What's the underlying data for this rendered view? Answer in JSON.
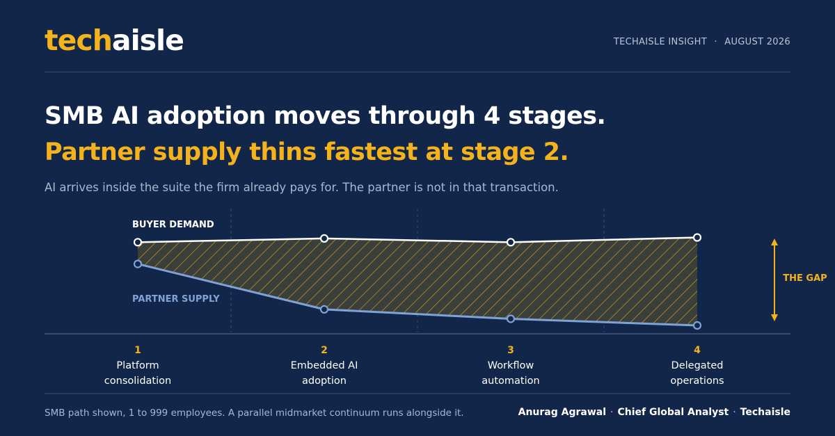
{
  "brand": {
    "logo_part1": "tech",
    "logo_part2": "aisle"
  },
  "header": {
    "series": "TECHAISLE INSIGHT",
    "separator": "·",
    "date": "AUGUST 2026"
  },
  "headline": {
    "line1": "SMB AI adoption moves through 4 stages.",
    "line2": "Partner supply thins fastest at stage 2.",
    "subtitle": "AI arrives inside the suite the firm already pays for. The partner is not in that transaction."
  },
  "chart_data": {
    "type": "line",
    "categories": [
      "1",
      "2",
      "3",
      "4"
    ],
    "category_names": [
      "Platform consolidation",
      "Embedded AI adoption",
      "Workflow automation",
      "Delegated operations"
    ],
    "category_lines": [
      [
        "Platform",
        "consolidation"
      ],
      [
        "Embedded AI",
        "adoption"
      ],
      [
        "Workflow",
        "automation"
      ],
      [
        "Delegated",
        "operations"
      ]
    ],
    "series": [
      {
        "name": "BUYER DEMAND",
        "values": [
          0.88,
          0.92,
          0.88,
          0.93
        ],
        "color": "#ffffff"
      },
      {
        "name": "PARTNER SUPPLY",
        "values": [
          0.65,
          0.17,
          0.07,
          0.0
        ],
        "color": "#7fa3d6"
      }
    ],
    "gap_label": "THE GAP",
    "gap_fill": "hatched",
    "accent_color": "#f4b31c",
    "ylim": [
      0,
      1
    ],
    "grid": "dashed vertical separators between stages"
  },
  "footer": {
    "note": "SMB path shown, 1 to 999 employees. A parallel midmarket continuum runs alongside it.",
    "author": "Anurag Agrawal",
    "role": "Chief Global Analyst",
    "org": "Techaisle",
    "separator": "·"
  }
}
